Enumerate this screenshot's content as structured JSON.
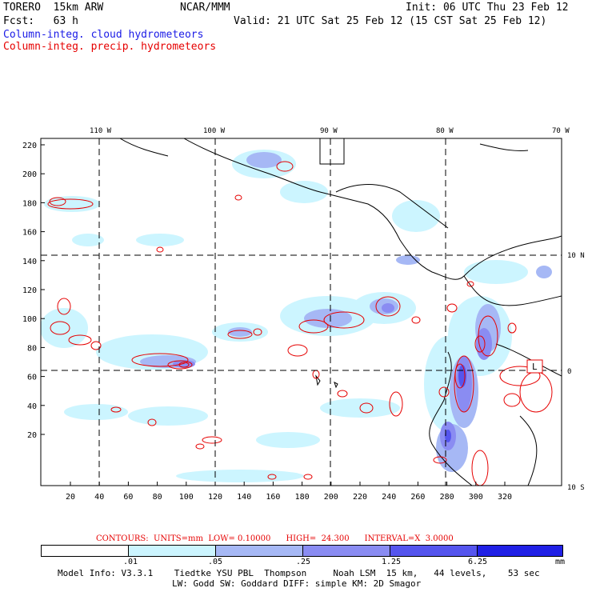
{
  "header": {
    "model": "TORERO  15km ARW",
    "center": "NCAR/MMM",
    "init": "Init: 06 UTC Thu 23 Feb 12",
    "fcst": "Fcst:   63 h",
    "valid": "Valid: 21 UTC Sat 25 Feb 12 (15 CST Sat 25 Feb 12)",
    "field_cloud": "Column-integ. cloud hydrometeors",
    "field_precip": "Column-integ. precip. hydrometeors"
  },
  "colors": {
    "cloud_text": "#1a1ae6",
    "precip_text": "#e60000",
    "bins": [
      "#ffffff",
      "#ccf5ff",
      "#a6b8f5",
      "#8a8cf2",
      "#5555ee",
      "#2020e6"
    ]
  },
  "map": {
    "top_lon_labels": [
      "110 W",
      "100 W",
      "90 W",
      "80 W",
      "70 W"
    ],
    "right_lat_labels": [
      "10 N",
      "0",
      "10 S"
    ],
    "left_ticks": [
      "220",
      "200",
      "180",
      "160",
      "140",
      "120",
      "100",
      "80",
      "60",
      "40",
      "20"
    ],
    "bottom_ticks": [
      "20",
      "40",
      "60",
      "80",
      "100",
      "120",
      "140",
      "160",
      "180",
      "200",
      "220",
      "240",
      "260",
      "280",
      "300",
      "320"
    ],
    "marker_label": "L"
  },
  "legend": {
    "contours": "CONTOURS:  UNITS=mm  LOW= 0.10000      HIGH=  24.300      INTERVAL=X  3.0000",
    "bin_labels": [
      ".01",
      ".05",
      ".25",
      "1.25",
      "6.25"
    ],
    "unit": "mm"
  },
  "footer": {
    "line1": "Model Info: V3.3.1    Tiedtke YSU PBL  Thompson     Noah LSM  15 km,   44 levels,    53 sec",
    "line2": "LW: Godd SW: Goddard DIFF: simple KM: 2D Smagor"
  }
}
